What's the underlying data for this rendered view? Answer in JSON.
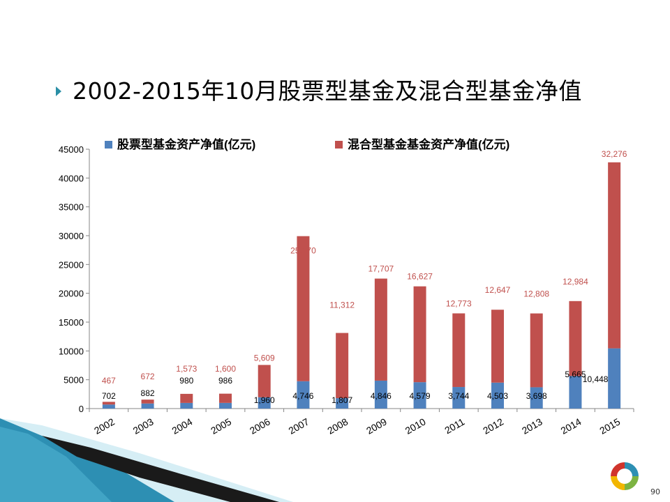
{
  "slide": {
    "title": "2002-2015年10月股票型基金及混合型基金净值",
    "page_number": "90"
  },
  "colors": {
    "stock": "#4f81bd",
    "hybrid": "#c0504d",
    "bullet": "#2a8fa6"
  },
  "chart_data": {
    "type": "bar",
    "stacked": true,
    "categories": [
      "2002",
      "2003",
      "2004",
      "2005",
      "2006",
      "2007",
      "2008",
      "2009",
      "2010",
      "2011",
      "2012",
      "2013",
      "2014",
      "2015"
    ],
    "series": [
      {
        "name": "股票型基金资产净值(亿元)",
        "values": [
          702,
          882,
          980,
          986,
          1960,
          4746,
          1807,
          4846,
          4579,
          3744,
          4503,
          3698,
          5665,
          10448
        ],
        "labels": [
          "702",
          "882",
          "980",
          "986",
          "1,960",
          "4,746",
          "1,807",
          "4,846",
          "4,579",
          "3,744",
          "4,503",
          "3,698",
          "5,665",
          "10,448"
        ]
      },
      {
        "name": "混合型基金基金资产净值(亿元)",
        "values": [
          467,
          672,
          1573,
          1600,
          5609,
          25170,
          11312,
          17707,
          16627,
          12773,
          12647,
          12808,
          12984,
          32276
        ],
        "labels": [
          "467",
          "672",
          "1,573",
          "1,600",
          "5,609",
          "25,170",
          "11,312",
          "17,707",
          "16,627",
          "12,773",
          "12,647",
          "12,808",
          "12,984",
          "32,276"
        ]
      }
    ],
    "ylim": [
      0,
      45000
    ],
    "yticks": [
      "0",
      "5000",
      "10000",
      "15000",
      "20000",
      "25000",
      "30000",
      "35000",
      "40000",
      "45000"
    ],
    "legend": "top",
    "grid": false
  }
}
